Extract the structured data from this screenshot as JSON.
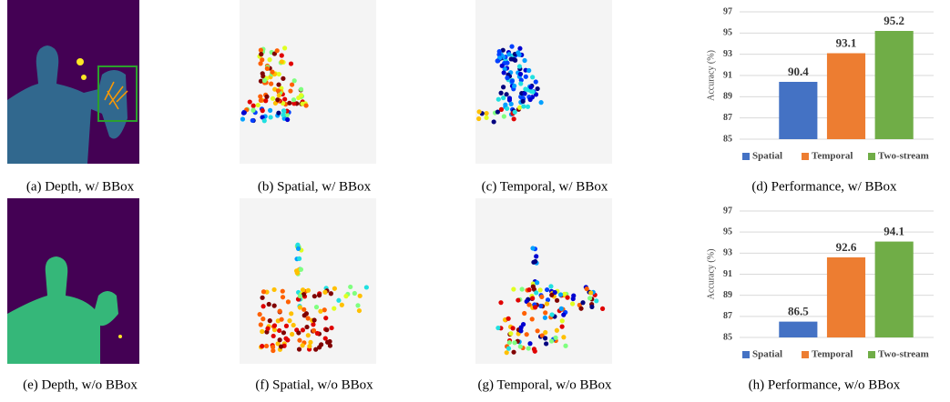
{
  "captions": [
    "(a) Depth, w/ BBox",
    "(b) Spatial, w/ BBox",
    "(c) Temporal, w/ BBox",
    "(d) Performance, w/ BBox",
    "(e) Depth, w/o BBox",
    "(f) Spatial, w/o BBox",
    "(g) Temporal, w/o BBox",
    "(h) Performance, w/o BBox"
  ],
  "chart_data": [
    {
      "type": "bar",
      "ylabel": "Accuracy (%)",
      "ylim": [
        85,
        97
      ],
      "yticks": [
        85,
        87,
        89,
        91,
        93,
        95,
        97
      ],
      "grid": true,
      "legend": "bottom",
      "series": [
        {
          "name": "Spatial",
          "color": "#4472c4",
          "values": [
            90.4
          ]
        },
        {
          "name": "Temporal",
          "color": "#ed7d31",
          "values": [
            93.1
          ]
        },
        {
          "name": "Two-stream",
          "color": "#70ad47",
          "values": [
            95.2
          ]
        }
      ]
    },
    {
      "type": "bar",
      "ylabel": "Accuracy (%)",
      "ylim": [
        85,
        97
      ],
      "yticks": [
        85,
        87,
        89,
        91,
        93,
        95,
        97
      ],
      "grid": true,
      "legend": "bottom",
      "series": [
        {
          "name": "Spatial",
          "color": "#4472c4",
          "values": [
            86.5
          ]
        },
        {
          "name": "Temporal",
          "color": "#ed7d31",
          "values": [
            92.6
          ]
        },
        {
          "name": "Two-stream",
          "color": "#70ad47",
          "values": [
            94.1
          ]
        }
      ]
    }
  ]
}
